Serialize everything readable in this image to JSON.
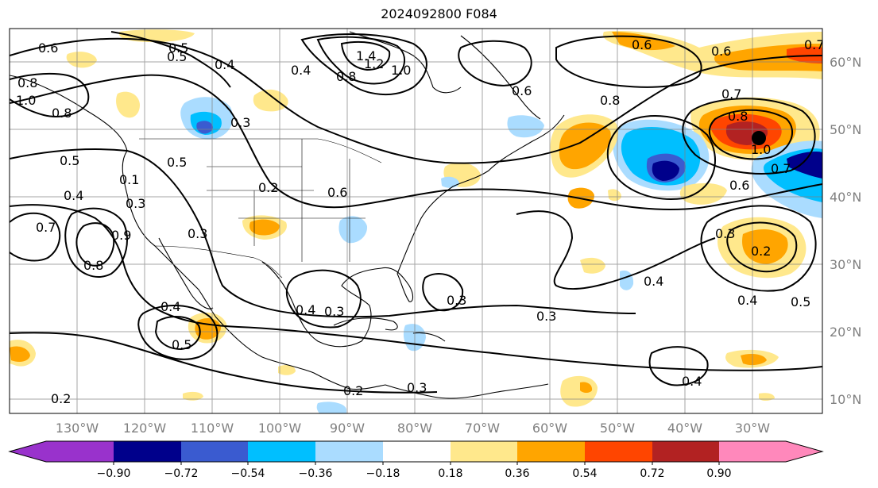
{
  "title": "2024092800 F084",
  "map": {
    "lon_labels": [
      "130°W",
      "120°W",
      "110°W",
      "100°W",
      "90°W",
      "80°W",
      "70°W",
      "60°W",
      "50°W",
      "40°W",
      "30°W"
    ],
    "lat_labels": [
      "60°N",
      "50°N",
      "40°N",
      "30°N",
      "20°N",
      "10°N"
    ],
    "contour_labels": [
      "0.6",
      "0.5",
      "0.4",
      "0.3",
      "0.8",
      "0.5",
      "0.4",
      "0.1",
      "0.5",
      "0.2",
      "0.7",
      "0.8",
      "0.9",
      "1.4",
      "1.2",
      "1.0",
      "0.8",
      "0.6",
      "0.4",
      "0.3",
      "0.6",
      "0.7",
      "0.8",
      "0.7",
      "0.6",
      "0.8",
      "1.0",
      "0.7",
      "0.6",
      "0.3",
      "0.2",
      "0.4",
      "0.5",
      "0.4",
      "0.3",
      "0.3",
      "0.3",
      "0.2",
      "0.3",
      "0.4",
      "0.5",
      "0.4",
      "0.2",
      "0.6",
      "0.5",
      "0.4",
      "0.3",
      "1.0",
      "0.8"
    ]
  },
  "colorbar": {
    "ticks": [
      "−0.90",
      "−0.72",
      "−0.54",
      "−0.36",
      "−0.18",
      "0.18",
      "0.36",
      "0.54",
      "0.72",
      "0.90"
    ],
    "colors": [
      "#9932cc",
      "#00008b",
      "#3a5bd0",
      "#00bfff",
      "#aadcff",
      "#ffffff",
      "#ffe88c",
      "#ffa500",
      "#ff4500",
      "#b22222",
      "#ff88bb"
    ]
  }
}
